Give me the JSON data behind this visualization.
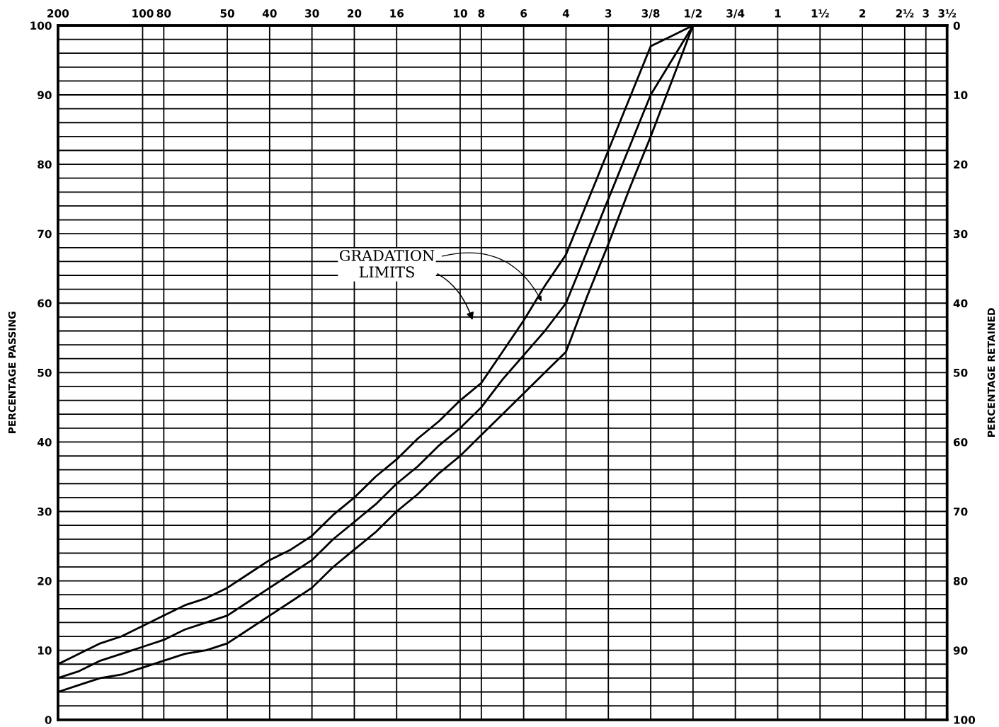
{
  "chart_data": {
    "type": "line",
    "ylabel": "PERCENTAGE PASSING",
    "y2label": "PERCENTAGE RETAINED",
    "grid": true,
    "marker": "none",
    "line_style": "solid",
    "ylim": [
      0,
      100
    ],
    "y2lim": [
      100,
      0
    ],
    "categories": [
      "200",
      null,
      null,
      null,
      "100",
      "80",
      null,
      null,
      "50",
      null,
      "40",
      null,
      "30",
      null,
      "20",
      null,
      "16",
      null,
      null,
      "10",
      "8",
      null,
      "6",
      null,
      "4",
      null,
      "3",
      null,
      "3/8",
      null,
      "1/2",
      null,
      "3/4",
      null,
      "1",
      null,
      "1½",
      null,
      "2",
      null,
      "2½",
      "3",
      "3½"
    ],
    "yticks": [
      0,
      {
        "value": 2,
        "label": null
      },
      {
        "value": 4,
        "label": null
      },
      {
        "value": 6,
        "label": null
      },
      {
        "value": 8,
        "label": null
      },
      10,
      {
        "value": 12,
        "label": null
      },
      {
        "value": 14,
        "label": null
      },
      {
        "value": 16,
        "label": null
      },
      {
        "value": 18,
        "label": null
      },
      20,
      {
        "value": 22,
        "label": null
      },
      {
        "value": 24,
        "label": null
      },
      {
        "value": 26,
        "label": null
      },
      {
        "value": 28,
        "label": null
      },
      30,
      {
        "value": 32,
        "label": null
      },
      {
        "value": 34,
        "label": null
      },
      {
        "value": 36,
        "label": null
      },
      {
        "value": 38,
        "label": null
      },
      40,
      {
        "value": 42,
        "label": null
      },
      {
        "value": 44,
        "label": null
      },
      {
        "value": 46,
        "label": null
      },
      {
        "value": 48,
        "label": null
      },
      50,
      {
        "value": 52,
        "label": null
      },
      {
        "value": 54,
        "label": null
      },
      {
        "value": 56,
        "label": null
      },
      {
        "value": 58,
        "label": null
      },
      60,
      {
        "value": 62,
        "label": null
      },
      {
        "value": 64,
        "label": null
      },
      {
        "value": 66,
        "label": null
      },
      {
        "value": 68,
        "label": null
      },
      70,
      {
        "value": 72,
        "label": null
      },
      {
        "value": 74,
        "label": null
      },
      {
        "value": 76,
        "label": null
      },
      {
        "value": 78,
        "label": null
      },
      80,
      {
        "value": 82,
        "label": null
      },
      {
        "value": 84,
        "label": null
      },
      {
        "value": 86,
        "label": null
      },
      {
        "value": 88,
        "label": null
      },
      90,
      {
        "value": 92,
        "label": null
      },
      {
        "value": 94,
        "label": null
      },
      {
        "value": 96,
        "label": null
      },
      {
        "value": 98,
        "label": null
      },
      100
    ],
    "y2ticks": [
      0,
      10,
      20,
      30,
      40,
      50,
      60,
      70,
      80,
      90,
      100
    ],
    "series": [
      {
        "color": "#000000",
        "values": [
          8,
          9.5,
          11,
          12,
          13.5,
          15,
          16.5,
          17.5,
          19,
          21,
          23,
          24.5,
          26.5,
          29.5,
          32,
          35,
          37.5,
          40.5,
          43,
          46,
          48.5,
          53,
          57.5,
          62.5,
          67,
          74.5,
          82,
          89.5,
          97,
          98.5,
          100,
          null,
          null,
          null,
          null,
          null,
          null,
          null,
          null,
          null,
          null,
          null,
          null
        ]
      },
      {
        "color": "#000000",
        "values": [
          6,
          7,
          8.5,
          9.5,
          10.5,
          11.5,
          13,
          14,
          15,
          17,
          19,
          21,
          23,
          26,
          28.5,
          31,
          34,
          36.5,
          39.5,
          42,
          45,
          49,
          52.5,
          56,
          60,
          67.5,
          75,
          82.5,
          90,
          95,
          100,
          null,
          null,
          null,
          null,
          null,
          null,
          null,
          null,
          null,
          null,
          null,
          null
        ]
      },
      {
        "color": "#000000",
        "values": [
          4,
          5,
          6,
          6.5,
          7.5,
          8.5,
          9.5,
          10,
          11,
          13,
          15,
          17,
          19,
          22,
          24.5,
          27,
          30,
          32.5,
          35.5,
          38,
          41,
          44,
          47,
          50,
          53,
          61,
          68.5,
          76.5,
          84,
          92,
          100,
          null,
          null,
          null,
          null,
          null,
          null,
          null,
          null,
          null,
          null,
          null,
          null
        ]
      }
    ],
    "annotations": [
      "GRADATION\nLIMITS"
    ]
  }
}
